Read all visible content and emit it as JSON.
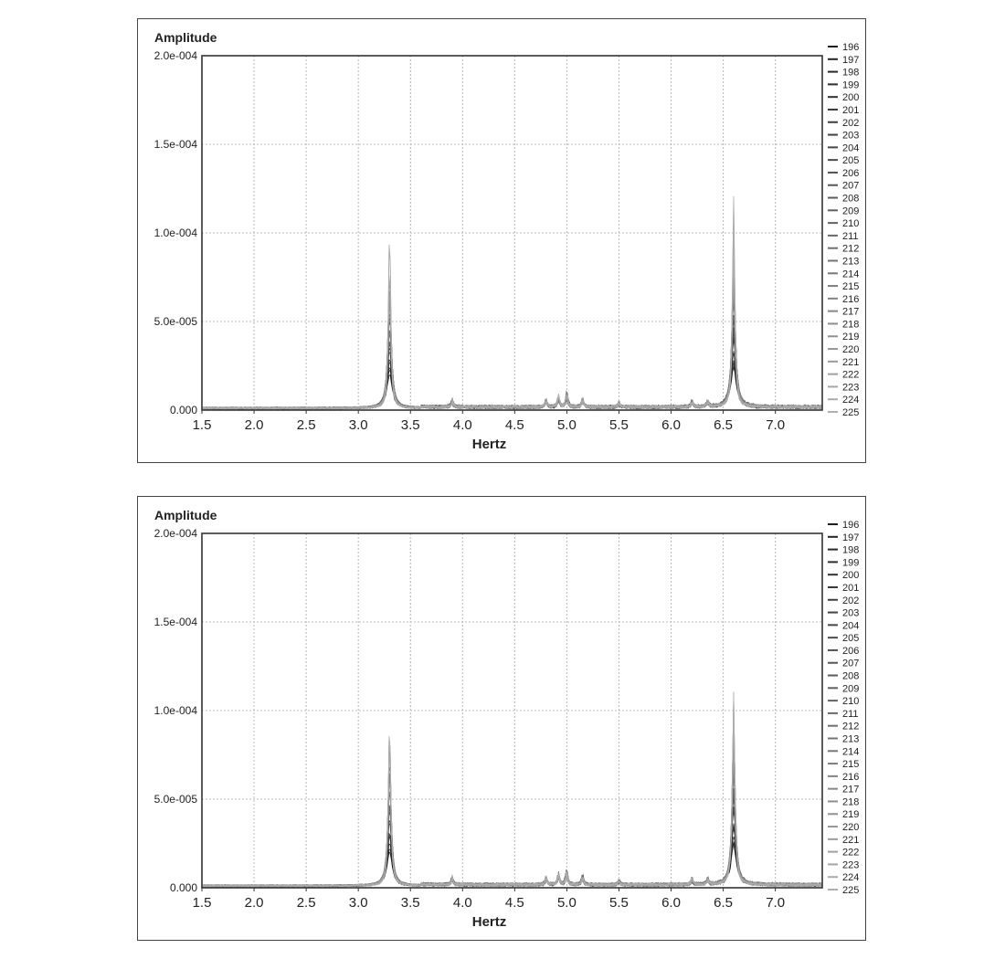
{
  "chart_data": [
    {
      "type": "line",
      "ylabel": "Amplitude",
      "xlabel": "Hertz",
      "xlim": [
        1.5,
        7.45
      ],
      "ylim": [
        0,
        0.0002
      ],
      "x_ticks": [
        "1.5",
        "2.0",
        "2.5",
        "3.0",
        "3.5",
        "4.0",
        "4.5",
        "5.0",
        "5.5",
        "6.0",
        "6.5",
        "7.0"
      ],
      "y_ticks": [
        {
          "value": 0,
          "label": "0.000"
        },
        {
          "value": 5e-05,
          "label": "5.0e-005"
        },
        {
          "value": 0.0001,
          "label": "1.0e-004"
        },
        {
          "value": 0.00015,
          "label": "1.5e-004"
        },
        {
          "value": 0.0002,
          "label": "2.0e-004"
        }
      ],
      "grid": true,
      "legend": "right",
      "legend_entries": [
        "196",
        "197",
        "198",
        "199",
        "200",
        "201",
        "202",
        "203",
        "204",
        "205",
        "206",
        "207",
        "208",
        "209",
        "210",
        "211",
        "212",
        "213",
        "214",
        "215",
        "216",
        "217",
        "218",
        "219",
        "220",
        "221",
        "222",
        "223",
        "224",
        "225"
      ],
      "peaks": [
        {
          "x": 3.3,
          "y": 0.000107
        },
        {
          "x": 6.6,
          "y": 0.000124
        }
      ],
      "minor_peaks": [
        {
          "x": 3.9,
          "y": 6e-06
        },
        {
          "x": 4.8,
          "y": 6e-06
        },
        {
          "x": 4.92,
          "y": 9e-06
        },
        {
          "x": 5.0,
          "y": 1.2e-05
        },
        {
          "x": 5.15,
          "y": 7e-06
        },
        {
          "x": 5.5,
          "y": 4e-06
        },
        {
          "x": 6.2,
          "y": 5e-06
        },
        {
          "x": 6.35,
          "y": 5e-06
        }
      ]
    },
    {
      "type": "line",
      "ylabel": "Amplitude",
      "xlabel": "Hertz",
      "xlim": [
        1.5,
        7.45
      ],
      "ylim": [
        0,
        0.0002
      ],
      "x_ticks": [
        "1.5",
        "2.0",
        "2.5",
        "3.0",
        "3.5",
        "4.0",
        "4.5",
        "5.0",
        "5.5",
        "6.0",
        "6.5",
        "7.0"
      ],
      "y_ticks": [
        {
          "value": 0,
          "label": "0.000"
        },
        {
          "value": 5e-05,
          "label": "5.0e-005"
        },
        {
          "value": 0.0001,
          "label": "1.0e-004"
        },
        {
          "value": 0.00015,
          "label": "1.5e-004"
        },
        {
          "value": 0.0002,
          "label": "2.0e-004"
        }
      ],
      "grid": true,
      "legend": "right",
      "legend_entries": [
        "196",
        "197",
        "198",
        "199",
        "200",
        "201",
        "202",
        "203",
        "204",
        "205",
        "206",
        "207",
        "208",
        "209",
        "210",
        "211",
        "212",
        "213",
        "214",
        "215",
        "216",
        "217",
        "218",
        "219",
        "220",
        "221",
        "222",
        "223",
        "224",
        "225"
      ],
      "peaks": [
        {
          "x": 3.3,
          "y": 0.000107
        },
        {
          "x": 6.6,
          "y": 0.000124
        }
      ],
      "minor_peaks": [
        {
          "x": 3.9,
          "y": 6e-06
        },
        {
          "x": 4.8,
          "y": 6e-06
        },
        {
          "x": 4.92,
          "y": 9e-06
        },
        {
          "x": 5.0,
          "y": 1.2e-05
        },
        {
          "x": 5.15,
          "y": 7e-06
        },
        {
          "x": 5.5,
          "y": 4e-06
        },
        {
          "x": 6.2,
          "y": 5e-06
        },
        {
          "x": 6.35,
          "y": 5e-06
        }
      ]
    }
  ]
}
